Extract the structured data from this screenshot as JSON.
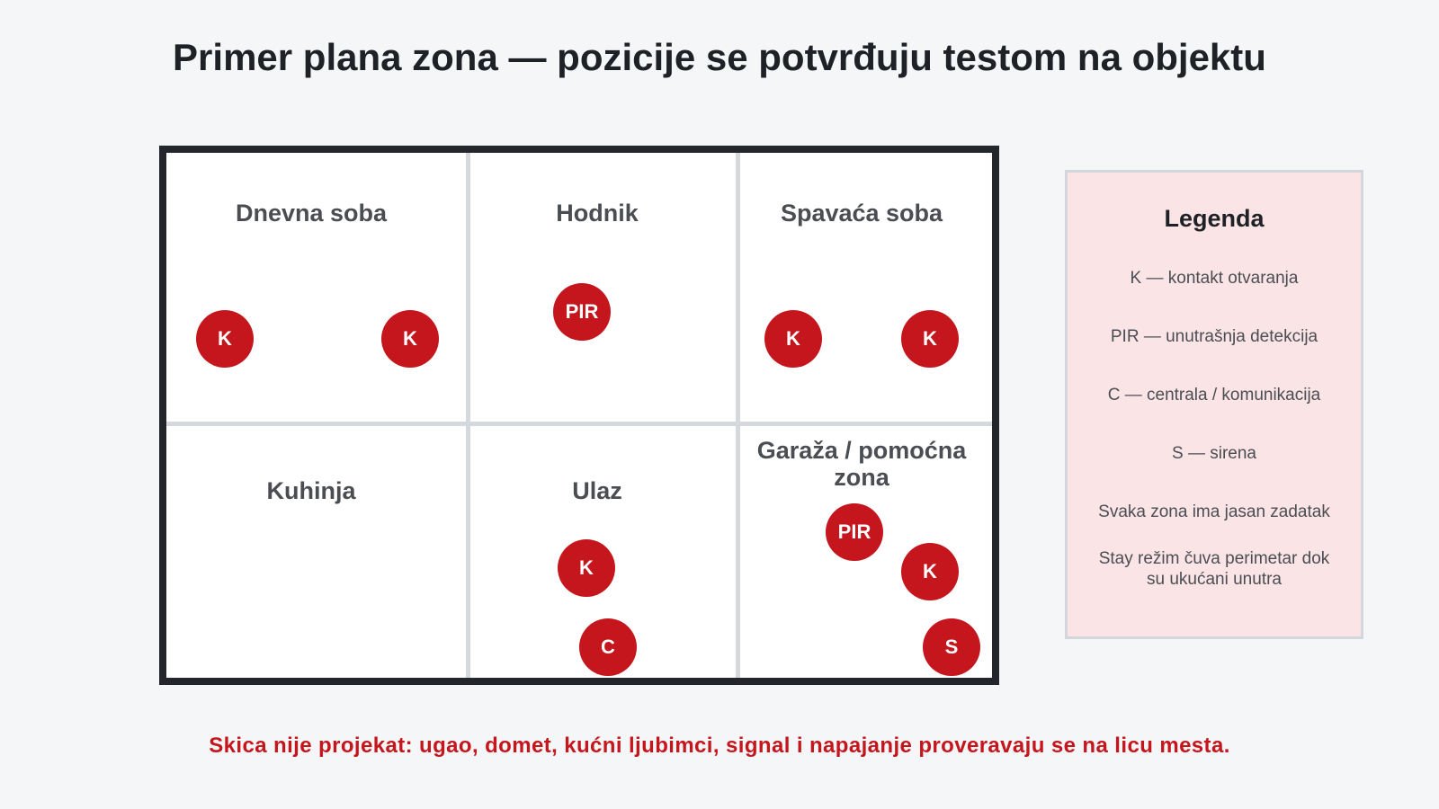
{
  "title": "Primer plana zona — pozicije se potvrđuju testom na objektu",
  "rooms": [
    "Dnevna soba",
    "Hodnik",
    "Spavaća soba",
    "Kuhinja",
    "Ulaz",
    "Garaža / pomoćna zona"
  ],
  "sensors": [
    {
      "label": "K",
      "room": "Dnevna soba"
    },
    {
      "label": "K",
      "room": "Dnevna soba"
    },
    {
      "label": "PIR",
      "room": "Hodnik"
    },
    {
      "label": "K",
      "room": "Spavaća soba"
    },
    {
      "label": "K",
      "room": "Spavaća soba"
    },
    {
      "label": "K",
      "room": "Ulaz"
    },
    {
      "label": "C",
      "room": "Ulaz"
    },
    {
      "label": "PIR",
      "room": "Garaža / pomoćna zona"
    },
    {
      "label": "K",
      "room": "Garaža / pomoćna zona"
    },
    {
      "label": "S",
      "room": "Garaža / pomoćna zona"
    }
  ],
  "legend": {
    "title": "Legenda",
    "items": [
      "K — kontakt otvaranja",
      "PIR — unutrašnja detekcija",
      "C — centrala / komunikacija",
      "S — sirena",
      "Svaka zona ima jasan zadatak",
      "Stay režim čuva perimetar dok su ukućani unutra"
    ]
  },
  "note": "Skica nije projekat: ugao, domet, kućni ljubimci, signal i napajanje proveravaju se na licu mesta.",
  "colors": {
    "sensor": "#c4161c",
    "note": "#c4161c",
    "legend_bg": "#fbe4e6",
    "plan_border": "#23272b"
  }
}
